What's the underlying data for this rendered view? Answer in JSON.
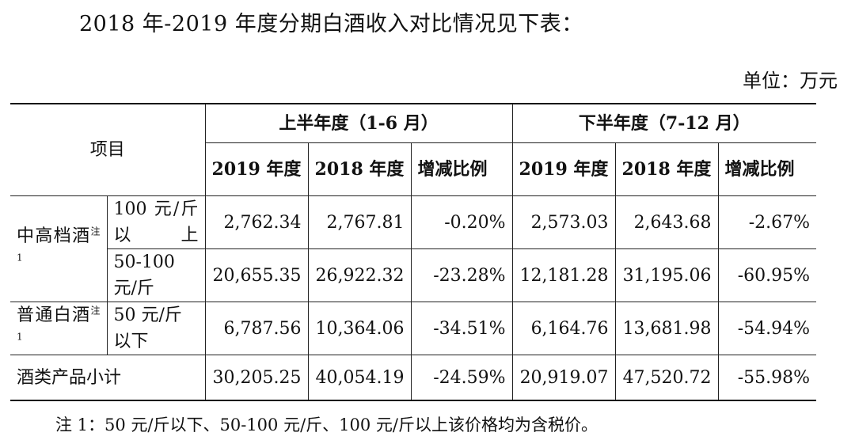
{
  "heading": "2018 年-2019 年度分期白酒收入对比情况见下表：",
  "unit": "单位：万元",
  "table": {
    "project_header": "项目",
    "groups": [
      "上半年度（1-6 月）",
      "下半年度（7-12 月）"
    ],
    "sub_headers": [
      "2019 年度",
      "2018 年度",
      "增减比例",
      "2019 年度",
      "2018 年度",
      "增减比例"
    ],
    "rows": [
      {
        "category": "中高档酒",
        "note_mark": "注 1",
        "sub": "100 元/斤以上",
        "values": [
          "2,762.34",
          "2,767.81",
          "-0.20%",
          "2,573.03",
          "2,643.68",
          "-2.67%"
        ]
      },
      {
        "sub": "50-100 元/斤",
        "values": [
          "20,655.35",
          "26,922.32",
          "-23.28%",
          "12,181.28",
          "31,195.06",
          "-60.95%"
        ]
      },
      {
        "category": "普通白酒",
        "note_mark": "注 1",
        "sub": "50 元/斤以下",
        "values": [
          "6,787.56",
          "10,364.06",
          "-34.51%",
          "6,164.76",
          "13,681.98",
          "-54.94%"
        ]
      }
    ],
    "total": {
      "label": "酒类产品小计",
      "values": [
        "30,205.25",
        "40,054.19",
        "-24.59%",
        "20,919.07",
        "47,520.72",
        "-55.98%"
      ]
    }
  },
  "footnote": "注 1：50 元/斤以下、50-100 元/斤、100 元/斤以上该价格均为含税价。"
}
